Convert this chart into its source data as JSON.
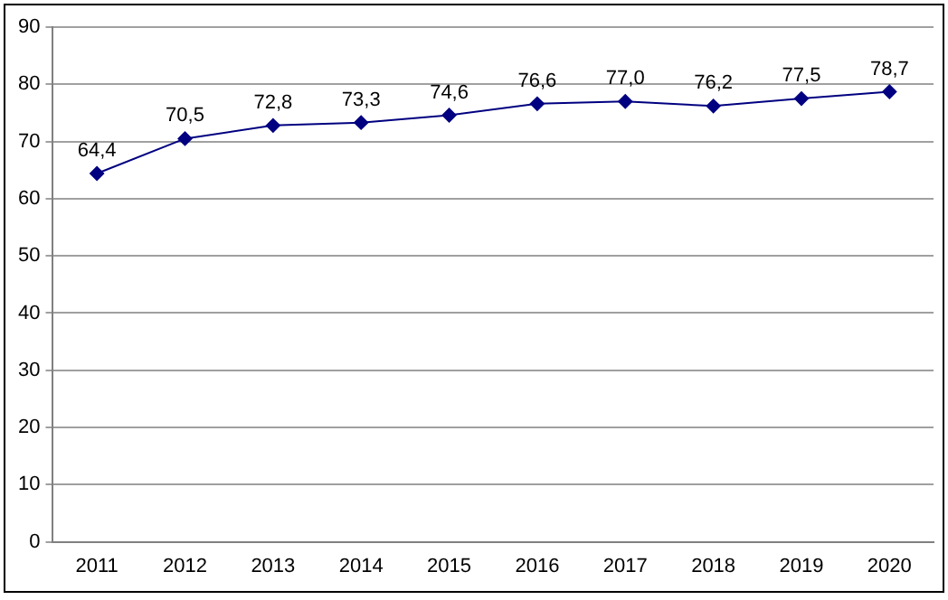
{
  "chart_data": {
    "type": "line",
    "categories": [
      "2011",
      "2012",
      "2013",
      "2014",
      "2015",
      "2016",
      "2017",
      "2018",
      "2019",
      "2020"
    ],
    "series": [
      {
        "color": "#000080",
        "values": [
          64.4,
          70.5,
          72.8,
          73.3,
          74.6,
          76.6,
          77.0,
          76.2,
          77.5,
          78.7
        ],
        "value_labels": [
          "64,4",
          "70,5",
          "72,8",
          "73,3",
          "74,6",
          "76,6",
          "77,0",
          "76,2",
          "77,5",
          "78,7"
        ]
      }
    ],
    "ylim": [
      0,
      90
    ],
    "yticks": [
      0,
      10,
      20,
      30,
      40,
      50,
      60,
      70,
      80,
      90
    ],
    "grid": "y",
    "legend": false,
    "marker": "diamond",
    "line_style": "solid"
  }
}
